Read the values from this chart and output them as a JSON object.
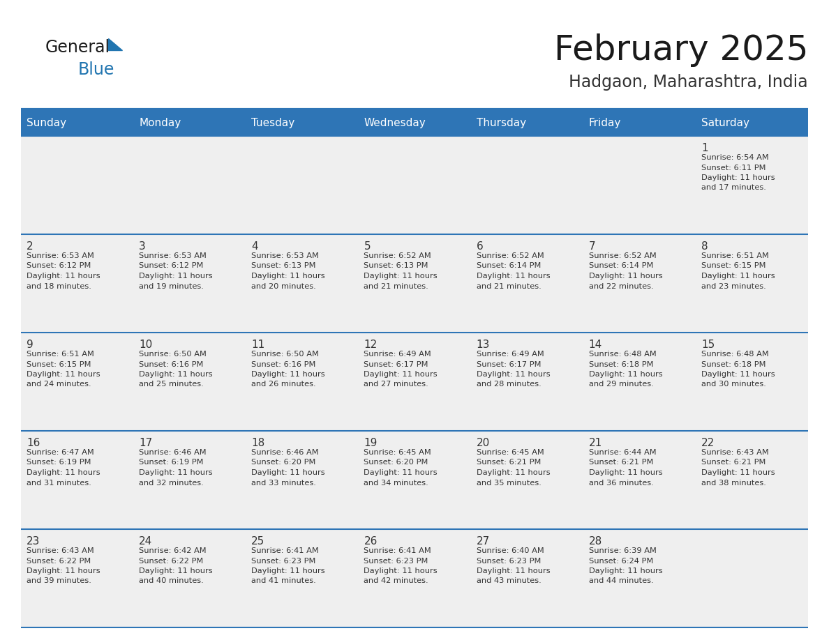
{
  "title": "February 2025",
  "subtitle": "Hadgaon, Maharashtra, India",
  "days_of_week": [
    "Sunday",
    "Monday",
    "Tuesday",
    "Wednesday",
    "Thursday",
    "Friday",
    "Saturday"
  ],
  "header_bg": "#2E75B6",
  "header_text": "#FFFFFF",
  "cell_bg": "#EFEFEF",
  "separator_color": "#2E75B6",
  "text_color": "#333333",
  "title_color": "#1a1a1a",
  "subtitle_color": "#333333",
  "logo_general_color": "#1a1a1a",
  "logo_blue_color": "#2175B0",
  "calendar_data": [
    [
      null,
      null,
      null,
      null,
      null,
      null,
      {
        "day": 1,
        "sunrise": "6:54 AM",
        "sunset": "6:11 PM",
        "daylight": "11 hours and 17 minutes."
      }
    ],
    [
      {
        "day": 2,
        "sunrise": "6:53 AM",
        "sunset": "6:12 PM",
        "daylight": "11 hours and 18 minutes."
      },
      {
        "day": 3,
        "sunrise": "6:53 AM",
        "sunset": "6:12 PM",
        "daylight": "11 hours and 19 minutes."
      },
      {
        "day": 4,
        "sunrise": "6:53 AM",
        "sunset": "6:13 PM",
        "daylight": "11 hours and 20 minutes."
      },
      {
        "day": 5,
        "sunrise": "6:52 AM",
        "sunset": "6:13 PM",
        "daylight": "11 hours and 21 minutes."
      },
      {
        "day": 6,
        "sunrise": "6:52 AM",
        "sunset": "6:14 PM",
        "daylight": "11 hours and 21 minutes."
      },
      {
        "day": 7,
        "sunrise": "6:52 AM",
        "sunset": "6:14 PM",
        "daylight": "11 hours and 22 minutes."
      },
      {
        "day": 8,
        "sunrise": "6:51 AM",
        "sunset": "6:15 PM",
        "daylight": "11 hours and 23 minutes."
      }
    ],
    [
      {
        "day": 9,
        "sunrise": "6:51 AM",
        "sunset": "6:15 PM",
        "daylight": "11 hours and 24 minutes."
      },
      {
        "day": 10,
        "sunrise": "6:50 AM",
        "sunset": "6:16 PM",
        "daylight": "11 hours and 25 minutes."
      },
      {
        "day": 11,
        "sunrise": "6:50 AM",
        "sunset": "6:16 PM",
        "daylight": "11 hours and 26 minutes."
      },
      {
        "day": 12,
        "sunrise": "6:49 AM",
        "sunset": "6:17 PM",
        "daylight": "11 hours and 27 minutes."
      },
      {
        "day": 13,
        "sunrise": "6:49 AM",
        "sunset": "6:17 PM",
        "daylight": "11 hours and 28 minutes."
      },
      {
        "day": 14,
        "sunrise": "6:48 AM",
        "sunset": "6:18 PM",
        "daylight": "11 hours and 29 minutes."
      },
      {
        "day": 15,
        "sunrise": "6:48 AM",
        "sunset": "6:18 PM",
        "daylight": "11 hours and 30 minutes."
      }
    ],
    [
      {
        "day": 16,
        "sunrise": "6:47 AM",
        "sunset": "6:19 PM",
        "daylight": "11 hours and 31 minutes."
      },
      {
        "day": 17,
        "sunrise": "6:46 AM",
        "sunset": "6:19 PM",
        "daylight": "11 hours and 32 minutes."
      },
      {
        "day": 18,
        "sunrise": "6:46 AM",
        "sunset": "6:20 PM",
        "daylight": "11 hours and 33 minutes."
      },
      {
        "day": 19,
        "sunrise": "6:45 AM",
        "sunset": "6:20 PM",
        "daylight": "11 hours and 34 minutes."
      },
      {
        "day": 20,
        "sunrise": "6:45 AM",
        "sunset": "6:21 PM",
        "daylight": "11 hours and 35 minutes."
      },
      {
        "day": 21,
        "sunrise": "6:44 AM",
        "sunset": "6:21 PM",
        "daylight": "11 hours and 36 minutes."
      },
      {
        "day": 22,
        "sunrise": "6:43 AM",
        "sunset": "6:21 PM",
        "daylight": "11 hours and 38 minutes."
      }
    ],
    [
      {
        "day": 23,
        "sunrise": "6:43 AM",
        "sunset": "6:22 PM",
        "daylight": "11 hours and 39 minutes."
      },
      {
        "day": 24,
        "sunrise": "6:42 AM",
        "sunset": "6:22 PM",
        "daylight": "11 hours and 40 minutes."
      },
      {
        "day": 25,
        "sunrise": "6:41 AM",
        "sunset": "6:23 PM",
        "daylight": "11 hours and 41 minutes."
      },
      {
        "day": 26,
        "sunrise": "6:41 AM",
        "sunset": "6:23 PM",
        "daylight": "11 hours and 42 minutes."
      },
      {
        "day": 27,
        "sunrise": "6:40 AM",
        "sunset": "6:23 PM",
        "daylight": "11 hours and 43 minutes."
      },
      {
        "day": 28,
        "sunrise": "6:39 AM",
        "sunset": "6:24 PM",
        "daylight": "11 hours and 44 minutes."
      },
      null
    ]
  ],
  "num_rows": 5,
  "num_cols": 7,
  "figw": 11.88,
  "figh": 9.18,
  "dpi": 100
}
